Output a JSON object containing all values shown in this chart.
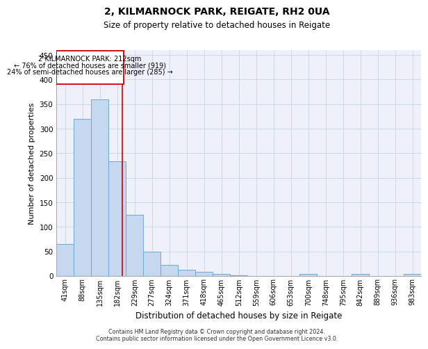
{
  "title1": "2, KILMARNOCK PARK, REIGATE, RH2 0UA",
  "title2": "Size of property relative to detached houses in Reigate",
  "xlabel": "Distribution of detached houses by size in Reigate",
  "ylabel": "Number of detached properties",
  "categories": [
    "41sqm",
    "88sqm",
    "135sqm",
    "182sqm",
    "229sqm",
    "277sqm",
    "324sqm",
    "371sqm",
    "418sqm",
    "465sqm",
    "512sqm",
    "559sqm",
    "606sqm",
    "653sqm",
    "700sqm",
    "748sqm",
    "795sqm",
    "842sqm",
    "889sqm",
    "936sqm",
    "983sqm"
  ],
  "values": [
    65,
    320,
    360,
    233,
    125,
    50,
    23,
    13,
    8,
    4,
    1,
    0,
    0,
    0,
    4,
    0,
    0,
    4,
    0,
    0,
    4
  ],
  "bar_color": "#c5d8f0",
  "bar_edge_color": "#6aaad4",
  "grid_color": "#d0d8e8",
  "annotation_box_color": "#cc0000",
  "property_line_color": "#cc0000",
  "property_line_x": 3.3,
  "annotation_text_line1": "2 KILMARNOCK PARK: 212sqm",
  "annotation_text_line2": "← 76% of detached houses are smaller (919)",
  "annotation_text_line3": "24% of semi-detached houses are larger (285) →",
  "ylim": [
    0,
    460
  ],
  "yticks": [
    0,
    50,
    100,
    150,
    200,
    250,
    300,
    350,
    400,
    450
  ],
  "footer_line1": "Contains HM Land Registry data © Crown copyright and database right 2024.",
  "footer_line2": "Contains public sector information licensed under the Open Government Licence v3.0.",
  "background_color": "#eef1fa"
}
